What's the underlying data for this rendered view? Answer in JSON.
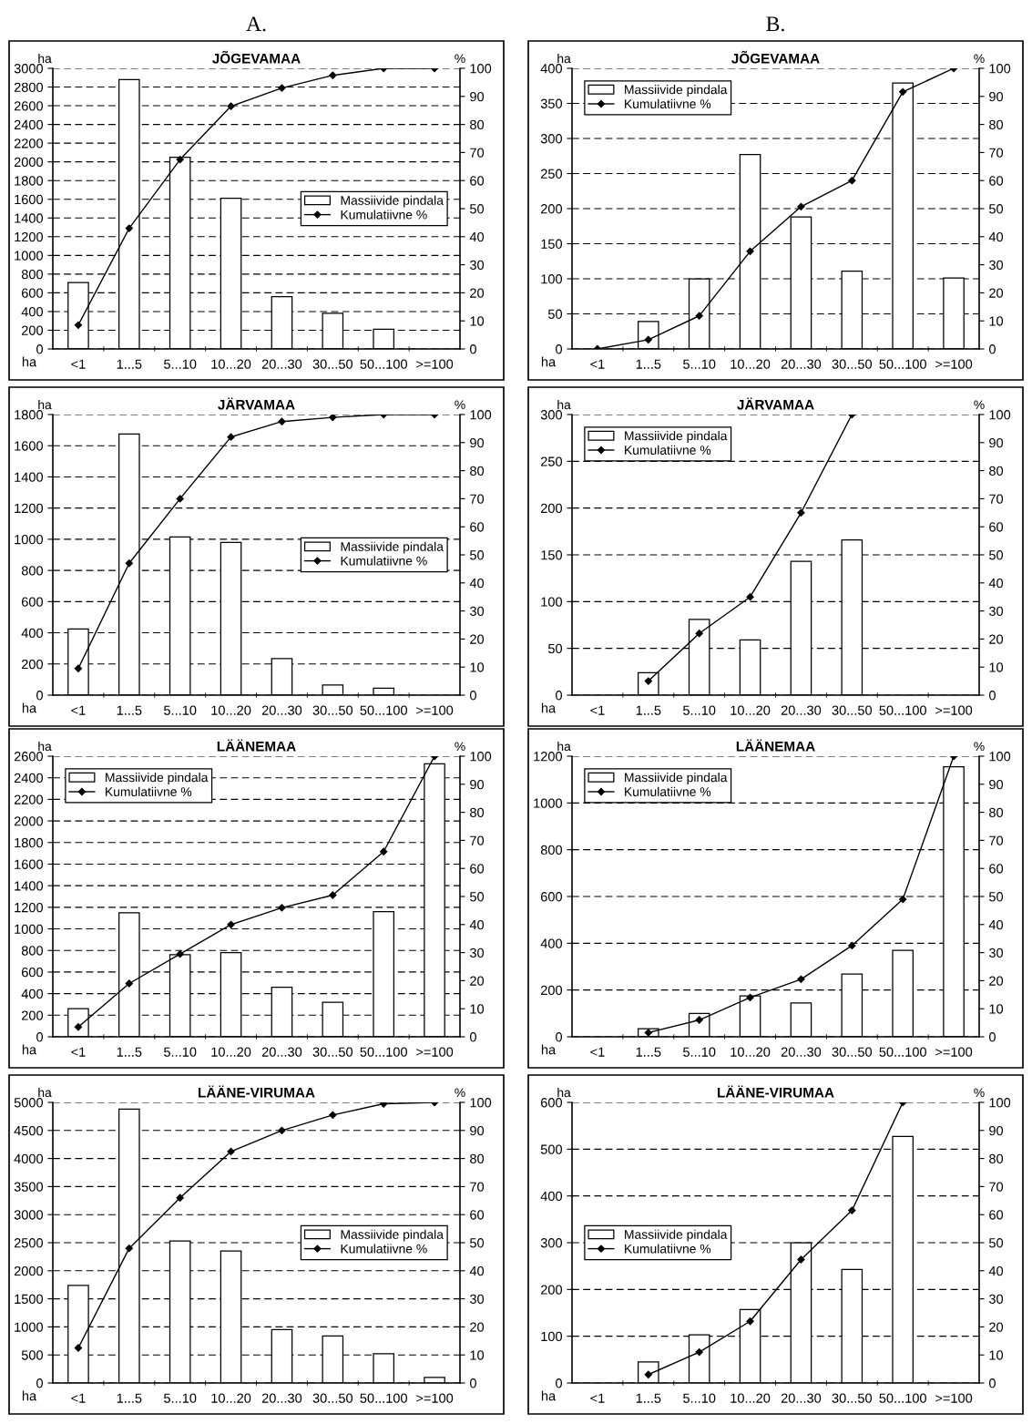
{
  "chart_data": [
    {
      "type": "bar",
      "title": "JÕGEVAMAA",
      "annotations": [
        "A."
      ],
      "xlabel": "ha",
      "ylabel": "ha",
      "y2label": "%",
      "categories": [
        "<1",
        "1...5",
        "5...10",
        "10...20",
        "20...30",
        "30...50",
        "50...100",
        ">=100"
      ],
      "ylim": [
        0,
        3000
      ],
      "yticks": [
        0,
        200,
        400,
        600,
        800,
        1000,
        1200,
        1400,
        1600,
        1800,
        2000,
        2200,
        2400,
        2600,
        2800,
        3000
      ],
      "y2lim": [
        0,
        100
      ],
      "y2ticks": [
        0,
        10,
        20,
        30,
        40,
        50,
        60,
        70,
        80,
        90,
        100
      ],
      "grid": "y",
      "legend": "right",
      "marker": "diamond",
      "series": [
        {
          "name": "Massiivide pindala",
          "color": "#ffffff",
          "values": [
            710,
            2880,
            2050,
            1610,
            560,
            380,
            210,
            null
          ]
        },
        {
          "name": "Kumulatiivne %",
          "type": "line",
          "axis": "y2",
          "color": "#000000",
          "values": [
            8.5,
            43,
            67.5,
            86.5,
            93,
            97.5,
            100,
            100
          ]
        }
      ]
    },
    {
      "type": "bar",
      "title": "JÕGEVAMAA",
      "annotations": [
        "B."
      ],
      "xlabel": "ha",
      "ylabel": "ha",
      "y2label": "%",
      "categories": [
        "<1",
        "1...5",
        "5...10",
        "10...20",
        "20...30",
        "30...50",
        "50...100",
        ">=100"
      ],
      "ylim": [
        0,
        400
      ],
      "yticks": [
        0,
        50,
        100,
        150,
        200,
        250,
        300,
        350,
        400
      ],
      "y2lim": [
        0,
        100
      ],
      "y2ticks": [
        0,
        10,
        20,
        30,
        40,
        50,
        60,
        70,
        80,
        90,
        100
      ],
      "grid": "y",
      "legend": "top left",
      "marker": "diamond",
      "series": [
        {
          "name": "Massiivide pindala",
          "color": "#ffffff",
          "values": [
            null,
            39,
            100,
            277,
            188,
            111,
            379,
            101
          ]
        },
        {
          "name": "Kumulatiivne %",
          "type": "line",
          "axis": "y2",
          "color": "#000000",
          "values": [
            0,
            3.3,
            11.8,
            34.8,
            50.7,
            60,
            91.6,
            100
          ]
        }
      ]
    },
    {
      "type": "bar",
      "title": "JÄRVAMAA",
      "xlabel": "ha",
      "ylabel": "ha",
      "y2label": "%",
      "categories": [
        "<1",
        "1...5",
        "5...10",
        "10...20",
        "20...30",
        "30...50",
        "50...100",
        ">=100"
      ],
      "ylim": [
        0,
        1800
      ],
      "yticks": [
        0,
        200,
        400,
        600,
        800,
        1000,
        1200,
        1400,
        1600,
        1800
      ],
      "y2lim": [
        0,
        100
      ],
      "y2ticks": [
        0,
        10,
        20,
        30,
        40,
        50,
        60,
        70,
        80,
        90,
        100
      ],
      "grid": "y",
      "legend": "right",
      "marker": "diamond",
      "series": [
        {
          "name": "Massiivide pindala",
          "color": "#ffffff",
          "values": [
            425,
            1675,
            1015,
            980,
            235,
            65,
            45,
            null
          ]
        },
        {
          "name": "Kumulatiivne %",
          "type": "line",
          "axis": "y2",
          "color": "#000000",
          "values": [
            9.5,
            47,
            70,
            92,
            97.5,
            99,
            100,
            100
          ]
        }
      ]
    },
    {
      "type": "bar",
      "title": "JÄRVAMAA",
      "xlabel": "ha",
      "ylabel": "ha",
      "y2label": "%",
      "categories": [
        "<1",
        "1...5",
        "5...10",
        "10...20",
        "20...30",
        "30...50",
        "50...100",
        ">=100"
      ],
      "ylim": [
        0,
        300
      ],
      "yticks": [
        0,
        50,
        100,
        150,
        200,
        250,
        300
      ],
      "y2lim": [
        0,
        100
      ],
      "y2ticks": [
        0,
        10,
        20,
        30,
        40,
        50,
        60,
        70,
        80,
        90,
        100
      ],
      "grid": "y",
      "legend": "top left",
      "marker": "diamond",
      "series": [
        {
          "name": "Massiivide pindala",
          "color": "#ffffff",
          "values": [
            null,
            24,
            81,
            59,
            143,
            166,
            null,
            null
          ]
        },
        {
          "name": "Kumulatiivne %",
          "type": "line",
          "axis": "y2",
          "color": "#000000",
          "values": [
            null,
            5,
            22,
            35,
            65,
            100,
            null,
            null
          ]
        }
      ]
    },
    {
      "type": "bar",
      "title": "LÄÄNEMAA",
      "xlabel": "ha",
      "ylabel": "ha",
      "y2label": "%",
      "categories": [
        "<1",
        "1...5",
        "5...10",
        "10...20",
        "20...30",
        "30...50",
        "50...100",
        ">=100"
      ],
      "ylim": [
        0,
        2600
      ],
      "yticks": [
        0,
        200,
        400,
        600,
        800,
        1000,
        1200,
        1400,
        1600,
        1800,
        2000,
        2200,
        2400,
        2600
      ],
      "y2lim": [
        0,
        100
      ],
      "y2ticks": [
        0,
        10,
        20,
        30,
        40,
        50,
        60,
        70,
        80,
        90,
        100
      ],
      "grid": "y",
      "legend": "top left",
      "marker": "diamond",
      "series": [
        {
          "name": "Massiivide pindala",
          "color": "#ffffff",
          "values": [
            260,
            1150,
            760,
            780,
            460,
            320,
            1160,
            2530
          ]
        },
        {
          "name": "Kumulatiivne %",
          "type": "line",
          "axis": "y2",
          "color": "#000000",
          "values": [
            3.5,
            19,
            29.5,
            40,
            46,
            50.5,
            66,
            100
          ]
        }
      ]
    },
    {
      "type": "bar",
      "title": "LÄÄNEMAA",
      "xlabel": "ha",
      "ylabel": "ha",
      "y2label": "%",
      "categories": [
        "<1",
        "1...5",
        "5...10",
        "10...20",
        "20...30",
        "30...50",
        "50...100",
        ">=100"
      ],
      "ylim": [
        0,
        1200
      ],
      "yticks": [
        0,
        200,
        400,
        600,
        800,
        1000,
        1200
      ],
      "y2lim": [
        0,
        100
      ],
      "y2ticks": [
        0,
        10,
        20,
        30,
        40,
        50,
        60,
        70,
        80,
        90,
        100
      ],
      "grid": "y",
      "legend": "top left",
      "marker": "diamond",
      "series": [
        {
          "name": "Massiivide pindala",
          "color": "#ffffff",
          "values": [
            null,
            35,
            100,
            175,
            145,
            268,
            370,
            1155
          ]
        },
        {
          "name": "Kumulatiivne %",
          "type": "line",
          "axis": "y2",
          "color": "#000000",
          "values": [
            null,
            1.5,
            6,
            14,
            20.5,
            32.5,
            49,
            100
          ]
        }
      ]
    },
    {
      "type": "bar",
      "title": "LÄÄNE-VIRUMAA",
      "xlabel": "ha",
      "ylabel": "ha",
      "y2label": "%",
      "categories": [
        "<1",
        "1...5",
        "5...10",
        "10...20",
        "20...30",
        "30...50",
        "50...100",
        ">=100"
      ],
      "ylim": [
        0,
        5000
      ],
      "yticks": [
        0,
        500,
        1000,
        1500,
        2000,
        2500,
        3000,
        3500,
        4000,
        4500,
        5000
      ],
      "y2lim": [
        0,
        100
      ],
      "y2ticks": [
        0,
        10,
        20,
        30,
        40,
        50,
        60,
        70,
        80,
        90,
        100
      ],
      "grid": "y",
      "legend": "right",
      "marker": "diamond",
      "series": [
        {
          "name": "Massiivide pindala",
          "color": "#ffffff",
          "values": [
            1740,
            4880,
            2530,
            2350,
            950,
            840,
            520,
            100
          ]
        },
        {
          "name": "Kumulatiivne %",
          "type": "line",
          "axis": "y2",
          "color": "#000000",
          "values": [
            12.5,
            48,
            66,
            82.5,
            90,
            95.5,
            99.5,
            100
          ]
        }
      ]
    },
    {
      "type": "bar",
      "title": "LÄÄNE-VIRUMAA",
      "xlabel": "ha",
      "ylabel": "ha",
      "y2label": "%",
      "categories": [
        "<1",
        "1...5",
        "5...10",
        "10...20",
        "20...30",
        "30...50",
        "50...100",
        ">=100"
      ],
      "ylim": [
        0,
        600
      ],
      "yticks": [
        0,
        100,
        200,
        300,
        400,
        500,
        600
      ],
      "y2lim": [
        0,
        100
      ],
      "y2ticks": [
        0,
        10,
        20,
        30,
        40,
        50,
        60,
        70,
        80,
        90,
        100
      ],
      "grid": "y",
      "legend": "left",
      "marker": "diamond",
      "series": [
        {
          "name": "Massiivide pindala",
          "color": "#ffffff",
          "values": [
            null,
            45,
            103,
            157,
            300,
            243,
            527,
            null
          ]
        },
        {
          "name": "Kumulatiivne %",
          "type": "line",
          "axis": "y2",
          "color": "#000000",
          "values": [
            null,
            3,
            11,
            22,
            44,
            61.5,
            100,
            null
          ]
        }
      ]
    }
  ]
}
